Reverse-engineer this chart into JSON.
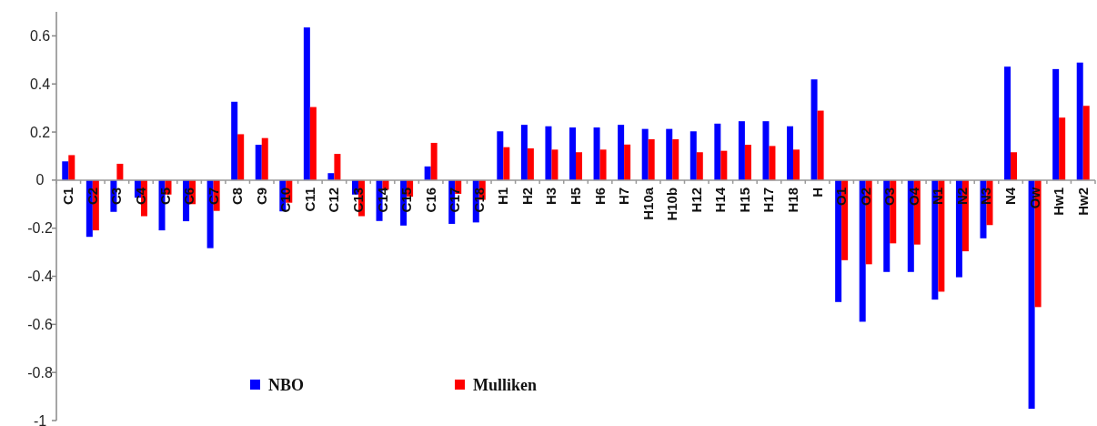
{
  "chart_data": {
    "type": "bar",
    "categories": [
      "C1",
      "C2",
      "C3",
      "C4",
      "C5",
      "C6",
      "C7",
      "C8",
      "C9",
      "C10",
      "C11",
      "C12",
      "C13",
      "C14",
      "C15",
      "C16",
      "C17",
      "C18",
      "H1",
      "H2",
      "H3",
      "H5",
      "H6",
      "H7",
      "H10a",
      "H10b",
      "H12",
      "H14",
      "H15",
      "H17",
      "H18",
      "H",
      "O1",
      "O2",
      "O3",
      "O4",
      "N1",
      "N2",
      "N3",
      "N4",
      "Ow",
      "Hw1",
      "Hw2"
    ],
    "series": [
      {
        "name": "NBO",
        "color": "#0000ff",
        "values": [
          0.078,
          -0.236,
          -0.132,
          -0.073,
          -0.209,
          -0.171,
          -0.283,
          0.326,
          0.147,
          -0.13,
          0.635,
          0.029,
          -0.06,
          -0.17,
          -0.189,
          0.057,
          -0.182,
          -0.176,
          0.203,
          0.23,
          0.224,
          0.219,
          0.219,
          0.23,
          0.213,
          0.213,
          0.203,
          0.235,
          0.245,
          0.245,
          0.224,
          0.419,
          -0.507,
          -0.589,
          -0.382,
          -0.382,
          -0.497,
          -0.404,
          -0.242,
          0.472,
          -0.951,
          0.462,
          0.489
        ]
      },
      {
        "name": "Mulliken",
        "color": "#ff0000",
        "values": [
          0.104,
          -0.209,
          0.068,
          -0.15,
          -0.06,
          -0.1,
          -0.128,
          0.191,
          0.175,
          -0.094,
          0.304,
          0.109,
          -0.15,
          -0.04,
          -0.069,
          0.155,
          -0.057,
          -0.082,
          0.137,
          0.132,
          0.127,
          0.116,
          0.127,
          0.148,
          0.17,
          0.17,
          0.116,
          0.122,
          0.147,
          0.142,
          0.127,
          0.289,
          -0.333,
          -0.35,
          -0.263,
          -0.268,
          -0.464,
          -0.296,
          -0.187,
          0.116,
          -0.528,
          0.26,
          0.309
        ]
      }
    ],
    "ylim": [
      -1,
      0.7
    ],
    "yticks": [
      {
        "value": -1,
        "label": "-1"
      },
      {
        "value": -0.8,
        "label": "-0.8"
      },
      {
        "value": -0.6,
        "label": "-0.6"
      },
      {
        "value": -0.4,
        "label": "-0.4"
      },
      {
        "value": -0.2,
        "label": "-0.2"
      },
      {
        "value": 0,
        "label": "0"
      },
      {
        "value": 0.2,
        "label": "0.2"
      },
      {
        "value": 0.4,
        "label": "0.4"
      },
      {
        "value": 0.6,
        "label": "0.6"
      }
    ],
    "legend": "bottom",
    "grid": false
  }
}
